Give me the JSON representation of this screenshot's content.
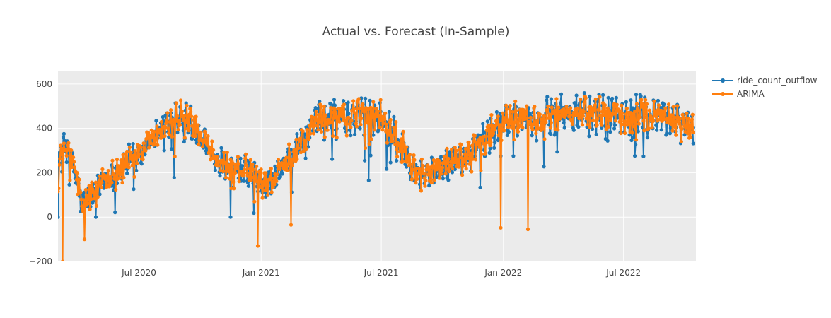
{
  "chart_data": {
    "type": "line",
    "title": "Actual vs. Forecast (In-Sample)",
    "xlabel": "",
    "ylabel": "",
    "x_start": "2020-03-01",
    "x_end": "2022-10-14",
    "x_range": [
      "2020-03-01",
      "2022-10-18"
    ],
    "ylim": [
      -200,
      660
    ],
    "y_ticks": [
      -200,
      0,
      200,
      400,
      600
    ],
    "x_ticks": [
      {
        "date": "2020-07-01",
        "label": "Jul 2020"
      },
      {
        "date": "2021-01-01",
        "label": "Jan 2021"
      },
      {
        "date": "2021-07-01",
        "label": "Jul 2021"
      },
      {
        "date": "2022-01-01",
        "label": "Jan 2022"
      },
      {
        "date": "2022-07-01",
        "label": "Jul 2022"
      }
    ],
    "grid": true,
    "legend_position": "top-right",
    "series": [
      {
        "name": "ride_count_outflow",
        "color": "#1f77b4",
        "weekly_values": [
          255,
          290,
          330,
          240,
          170,
          60,
          80,
          90,
          120,
          150,
          170,
          180,
          190,
          210,
          230,
          250,
          265,
          280,
          300,
          330,
          350,
          370,
          390,
          400,
          420,
          440,
          460,
          470,
          450,
          420,
          380,
          340,
          320,
          300,
          270,
          250,
          230,
          210,
          190,
          200,
          210,
          205,
          190,
          160,
          140,
          150,
          170,
          190,
          210,
          240,
          270,
          300,
          330,
          360,
          390,
          410,
          430,
          440,
          450,
          455,
          460,
          450,
          440,
          450,
          460,
          470,
          475,
          470,
          465,
          455,
          440,
          410,
          380,
          340,
          310,
          280,
          250,
          220,
          200,
          190,
          200,
          210,
          220,
          230,
          240,
          250,
          260,
          270,
          280,
          300,
          320,
          340,
          360,
          380,
          400,
          410,
          420,
          430,
          440,
          450,
          450,
          440,
          430,
          430,
          440,
          450,
          460,
          470,
          480,
          470,
          460,
          470,
          480,
          470,
          460,
          470,
          480,
          470,
          460,
          470,
          470,
          460,
          455,
          460,
          470,
          475,
          470,
          460,
          470,
          465,
          470,
          450,
          440,
          430,
          420,
          410,
          400,
          390,
          380
        ]
      },
      {
        "name": "ARIMA",
        "color": "#ff7f0e",
        "weekly_values": [
          255,
          290,
          330,
          240,
          170,
          60,
          80,
          90,
          120,
          150,
          170,
          180,
          190,
          210,
          230,
          250,
          265,
          280,
          300,
          330,
          350,
          370,
          390,
          400,
          420,
          440,
          460,
          470,
          450,
          420,
          380,
          340,
          320,
          300,
          270,
          250,
          230,
          210,
          190,
          200,
          210,
          205,
          190,
          160,
          140,
          150,
          170,
          190,
          210,
          240,
          270,
          300,
          330,
          360,
          390,
          410,
          430,
          440,
          450,
          455,
          460,
          450,
          440,
          450,
          460,
          470,
          475,
          470,
          465,
          455,
          440,
          410,
          380,
          340,
          310,
          280,
          250,
          220,
          200,
          190,
          200,
          210,
          220,
          230,
          240,
          250,
          260,
          270,
          280,
          300,
          320,
          340,
          360,
          380,
          400,
          410,
          420,
          430,
          440,
          450,
          450,
          440,
          430,
          430,
          440,
          450,
          460,
          470,
          480,
          470,
          460,
          470,
          480,
          470,
          460,
          470,
          480,
          470,
          460,
          470,
          470,
          460,
          455,
          460,
          470,
          475,
          470,
          460,
          470,
          465,
          470,
          450,
          440,
          430,
          420,
          410,
          400,
          390,
          380
        ],
        "extreme_points": [
          {
            "date": "2020-03-08",
            "value": -200
          },
          {
            "date": "2020-04-10",
            "value": -100
          },
          {
            "date": "2020-12-27",
            "value": -130
          },
          {
            "date": "2021-02-15",
            "value": -35
          },
          {
            "date": "2021-12-28",
            "value": -48
          },
          {
            "date": "2022-02-07",
            "value": -55
          }
        ]
      }
    ]
  }
}
